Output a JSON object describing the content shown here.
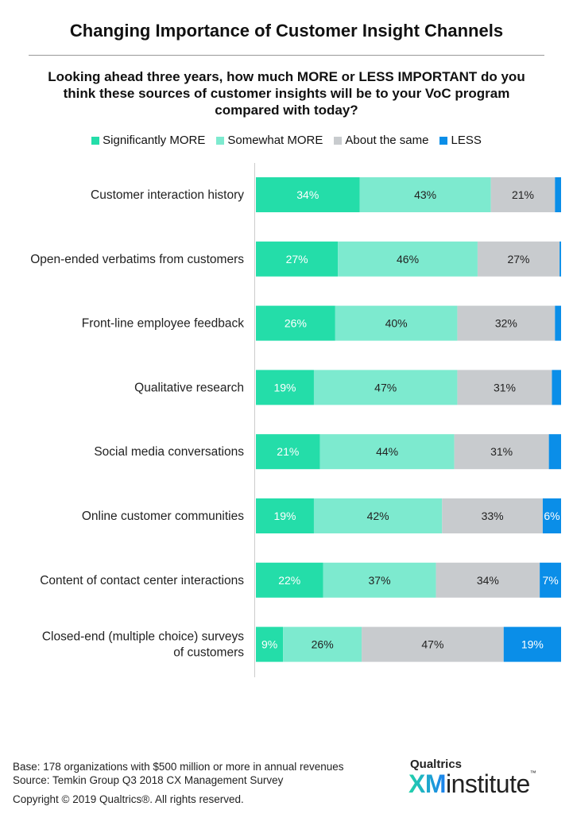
{
  "chart_data": {
    "type": "bar",
    "orientation": "horizontal",
    "stacked": true,
    "title": "Changing Importance of Customer Insight Channels",
    "subtitle": "Looking ahead three years, how much MORE or LESS IMPORTANT do you think these sources of customer insights will be to your VoC program compared with today?",
    "legend_position": "top",
    "grid": false,
    "categories": [
      "Customer interaction history",
      "Open-ended verbatims from customers",
      "Front-line employee feedback",
      "Qualitative research",
      "Social media conversations",
      "Online customer communities",
      "Content of contact center interactions",
      "Closed-end (multiple choice) surveys of customers"
    ],
    "series": [
      {
        "name": "Significantly MORE",
        "color": "#24DDA9",
        "label_color": "#ffffff",
        "values": [
          34,
          27,
          26,
          19,
          21,
          19,
          22,
          9
        ]
      },
      {
        "name": "Somewhat MORE",
        "color": "#7DEACF",
        "label_color": "#222222",
        "values": [
          43,
          46,
          40,
          47,
          44,
          42,
          37,
          26
        ]
      },
      {
        "name": "About the same",
        "color": "#C8CBCE",
        "label_color": "#222222",
        "values": [
          21,
          27,
          32,
          31,
          31,
          33,
          34,
          47
        ]
      },
      {
        "name": "LESS",
        "color": "#0A8EE8",
        "label_color": "#ffffff",
        "values": [
          2,
          0.5,
          2,
          3,
          4,
          6,
          7,
          19
        ],
        "labeled": [
          false,
          false,
          false,
          false,
          false,
          true,
          true,
          true
        ]
      }
    ],
    "value_suffix": "%"
  },
  "footer": {
    "base": "Base: 178 organizations with $500 million or more in annual revenues",
    "source": "Source: Temkin Group Q3 2018 CX Management Survey",
    "copyright": "Copyright © 2019 Qualtrics®.  All rights reserved."
  },
  "logo": {
    "line1": "Qualtrics",
    "xm": "XM",
    "word": "institute",
    "tm": "™"
  }
}
